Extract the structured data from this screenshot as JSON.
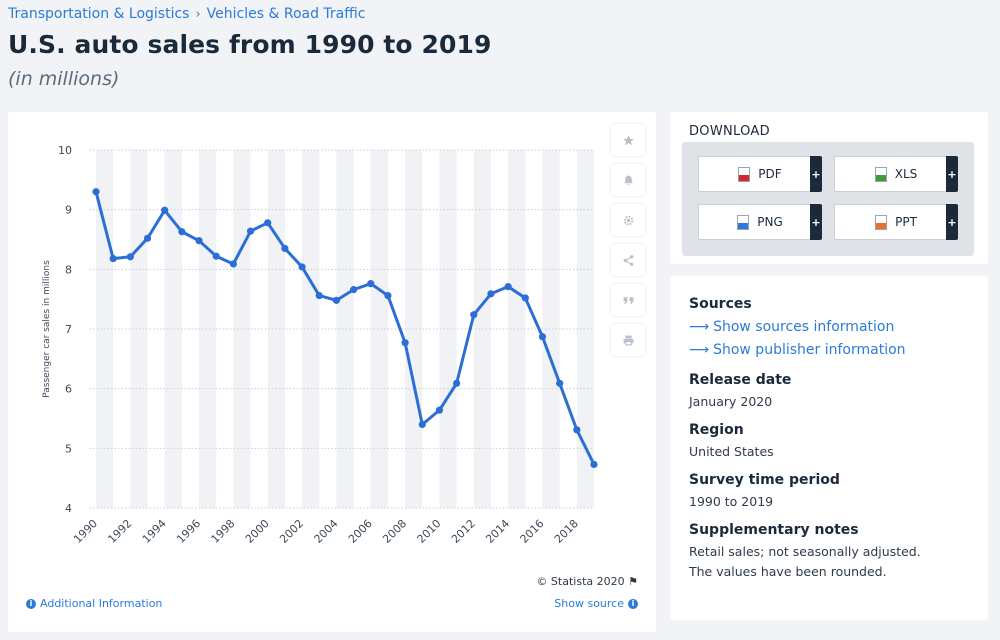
{
  "breadcrumb": {
    "category": "Transportation & Logistics",
    "separator": "›",
    "subcategory": "Vehicles & Road Traffic"
  },
  "title": "U.S. auto sales from 1990 to 2019",
  "subtitle": "(in millions)",
  "toolbar": {
    "icons": [
      "star-icon",
      "bell-icon",
      "gear-icon",
      "share-icon",
      "quote-icon",
      "print-icon"
    ]
  },
  "chart_footer": {
    "credit": "© Statista 2020",
    "additional_info": "Additional Information",
    "show_source": "Show source"
  },
  "download": {
    "title": "DOWNLOAD",
    "buttons": [
      {
        "label": "PDF",
        "plus": "+",
        "color": "#d9252a"
      },
      {
        "label": "XLS",
        "plus": "+",
        "color": "#3f9a38"
      },
      {
        "label": "PNG",
        "plus": "+",
        "color": "#2b7bd8"
      },
      {
        "label": "PPT",
        "plus": "+",
        "color": "#e8702a"
      }
    ]
  },
  "sources": {
    "heading": "Sources",
    "show_sources": "Show sources information",
    "show_publisher": "Show publisher information",
    "release_heading": "Release date",
    "release_value": "January 2020",
    "region_heading": "Region",
    "region_value": "United States",
    "survey_heading": "Survey time period",
    "survey_value": "1990 to 2019",
    "notes_heading": "Supplementary notes",
    "notes_line1": "Retail sales; not seasonally adjusted.",
    "notes_line2": "The values have been rounded."
  },
  "chart_data": {
    "type": "line",
    "title": "",
    "xlabel": "",
    "ylabel": "Passenger car sales in millions",
    "line_color": "#2b6fd6",
    "x": [
      1990,
      1991,
      1992,
      1993,
      1994,
      1995,
      1996,
      1997,
      1998,
      1999,
      2000,
      2001,
      2002,
      2003,
      2004,
      2005,
      2006,
      2007,
      2008,
      2009,
      2010,
      2011,
      2012,
      2013,
      2014,
      2015,
      2016,
      2017,
      2018,
      2019
    ],
    "values": [
      9.3,
      8.18,
      8.21,
      8.52,
      8.99,
      8.63,
      8.48,
      8.22,
      8.09,
      8.64,
      8.78,
      8.35,
      8.04,
      7.56,
      7.48,
      7.66,
      7.76,
      7.56,
      6.77,
      5.4,
      5.64,
      6.09,
      7.24,
      7.59,
      7.71,
      7.52,
      6.87,
      6.09,
      5.31,
      4.73
    ],
    "x_tick_labels": [
      "1990",
      "1992",
      "1994",
      "1996",
      "1998",
      "2000",
      "2002",
      "2004",
      "2006",
      "2008",
      "2010",
      "2012",
      "2014",
      "2016",
      "2018"
    ],
    "y_ticks": [
      "4",
      "5",
      "6",
      "7",
      "8",
      "9",
      "10"
    ],
    "ylim": [
      4,
      10
    ],
    "grid": true
  }
}
